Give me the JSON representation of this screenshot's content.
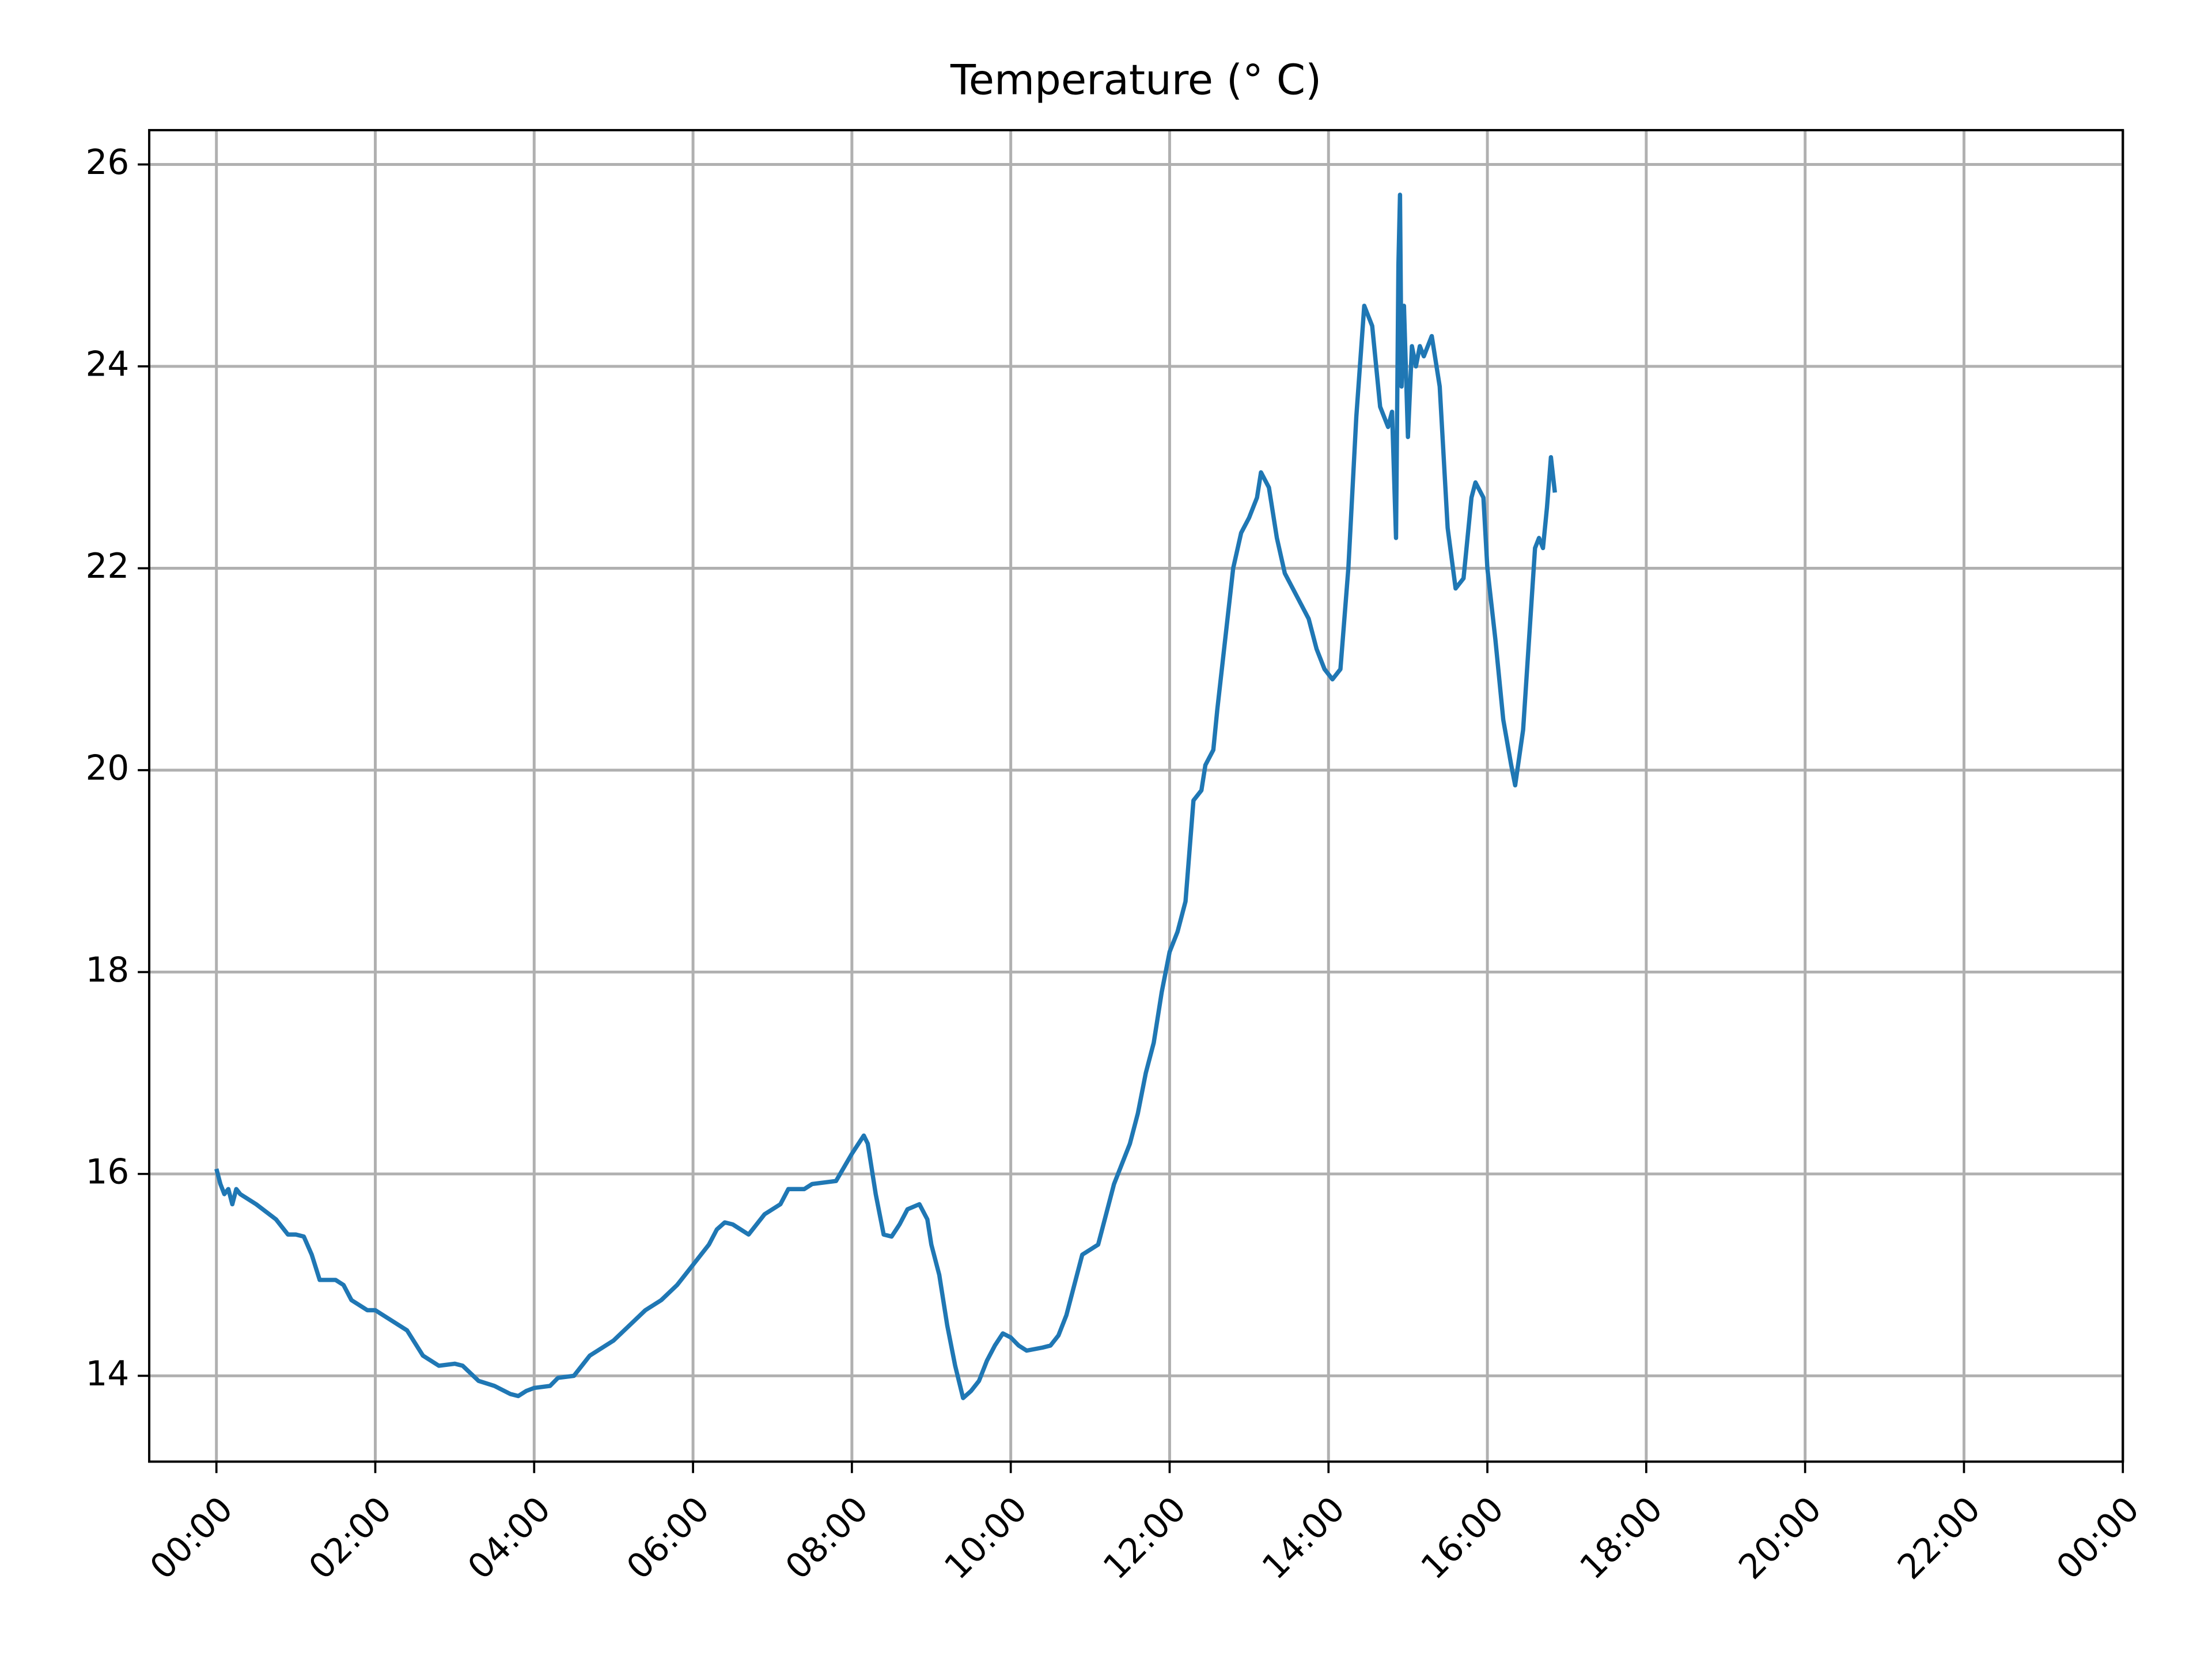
{
  "chart_data": {
    "type": "line",
    "title": "Temperature (° C)",
    "x": [
      0,
      0.05,
      0.1,
      0.15,
      0.2,
      0.25,
      0.3,
      0.5,
      0.75,
      0.9,
      1.0,
      1.1,
      1.2,
      1.3,
      1.5,
      1.6,
      1.7,
      1.9,
      2.0,
      2.2,
      2.4,
      2.6,
      2.8,
      3.0,
      3.1,
      3.3,
      3.5,
      3.7,
      3.8,
      3.9,
      4.0,
      4.2,
      4.3,
      4.5,
      4.7,
      5.0,
      5.2,
      5.4,
      5.6,
      5.8,
      6.0,
      6.2,
      6.3,
      6.4,
      6.5,
      6.7,
      6.8,
      6.9,
      7.1,
      7.2,
      7.4,
      7.5,
      7.8,
      8.0,
      8.15,
      8.2,
      8.3,
      8.4,
      8.5,
      8.6,
      8.7,
      8.85,
      8.95,
      9.0,
      9.1,
      9.2,
      9.3,
      9.4,
      9.5,
      9.6,
      9.7,
      9.8,
      9.9,
      10.0,
      10.1,
      10.2,
      10.4,
      10.5,
      10.6,
      10.7,
      10.8,
      10.9,
      11.0,
      11.1,
      11.2,
      11.3,
      11.4,
      11.5,
      11.6,
      11.7,
      11.8,
      11.9,
      12.0,
      12.1,
      12.2,
      12.25,
      12.3,
      12.4,
      12.45,
      12.55,
      12.6,
      12.7,
      12.8,
      12.9,
      13.0,
      13.1,
      13.15,
      13.25,
      13.35,
      13.45,
      13.55,
      13.65,
      13.75,
      13.85,
      13.95,
      14.05,
      14.15,
      14.25,
      14.35,
      14.45,
      14.55,
      14.65,
      14.75,
      14.8,
      14.85,
      14.88,
      14.9,
      14.92,
      14.95,
      15.0,
      15.05,
      15.1,
      15.15,
      15.2,
      15.3,
      15.4,
      15.5,
      15.6,
      15.7,
      15.8,
      15.85,
      15.95,
      16.0,
      16.1,
      16.2,
      16.3,
      16.35,
      16.45,
      16.5,
      16.6,
      16.65,
      16.7,
      16.75,
      16.8,
      16.85
    ],
    "series": [
      {
        "name": "Temperature",
        "color": "#1f77b4",
        "values": [
          16.05,
          15.9,
          15.8,
          15.85,
          15.7,
          15.85,
          15.8,
          15.7,
          15.55,
          15.4,
          15.4,
          15.38,
          15.2,
          14.95,
          14.95,
          14.9,
          14.75,
          14.65,
          14.65,
          14.55,
          14.45,
          14.2,
          14.1,
          14.12,
          14.1,
          13.95,
          13.9,
          13.82,
          13.8,
          13.85,
          13.88,
          13.9,
          13.98,
          14.0,
          14.2,
          14.35,
          14.5,
          14.65,
          14.75,
          14.9,
          15.1,
          15.3,
          15.45,
          15.52,
          15.5,
          15.4,
          15.5,
          15.6,
          15.7,
          15.85,
          15.85,
          15.9,
          15.93,
          16.2,
          16.38,
          16.3,
          15.8,
          15.4,
          15.38,
          15.5,
          15.65,
          15.7,
          15.55,
          15.3,
          15.0,
          14.5,
          14.1,
          13.78,
          13.85,
          13.95,
          14.15,
          14.3,
          14.42,
          14.38,
          14.3,
          14.25,
          14.28,
          14.3,
          14.4,
          14.6,
          14.9,
          15.2,
          15.25,
          15.3,
          15.6,
          15.9,
          16.1,
          16.3,
          16.6,
          17.0,
          17.3,
          17.8,
          18.2,
          18.4,
          18.7,
          19.2,
          19.7,
          19.8,
          20.05,
          20.2,
          20.6,
          21.3,
          22.0,
          22.35,
          22.5,
          22.7,
          22.95,
          22.8,
          22.3,
          21.95,
          21.8,
          21.65,
          21.5,
          21.2,
          21.0,
          20.9,
          21.0,
          22.0,
          23.5,
          24.6,
          24.4,
          23.6,
          23.4,
          23.55,
          22.3,
          25.0,
          25.7,
          23.8,
          24.6,
          23.3,
          24.2,
          24.0,
          24.2,
          24.1,
          24.3,
          23.8,
          22.4,
          21.8,
          21.9,
          22.7,
          22.85,
          22.7,
          22.0,
          21.3,
          20.5,
          20.05,
          19.85,
          20.4,
          21.0,
          22.2,
          22.3,
          22.2,
          22.6,
          23.1,
          22.75
        ]
      }
    ],
    "xlim": [
      -0.846,
      24
    ],
    "ylim": [
      13.15,
      26.34
    ],
    "xticks": [
      {
        "value": 0,
        "label": "00:00"
      },
      {
        "value": 2,
        "label": "02:00"
      },
      {
        "value": 4,
        "label": "04:00"
      },
      {
        "value": 6,
        "label": "06:00"
      },
      {
        "value": 8,
        "label": "08:00"
      },
      {
        "value": 10,
        "label": "10:00"
      },
      {
        "value": 12,
        "label": "12:00"
      },
      {
        "value": 14,
        "label": "14:00"
      },
      {
        "value": 16,
        "label": "16:00"
      },
      {
        "value": 18,
        "label": "18:00"
      },
      {
        "value": 20,
        "label": "20:00"
      },
      {
        "value": 22,
        "label": "22:00"
      },
      {
        "value": 24,
        "label": "00:00"
      }
    ],
    "yticks": [
      14,
      16,
      18,
      20,
      22,
      24,
      26
    ],
    "grid": true
  }
}
